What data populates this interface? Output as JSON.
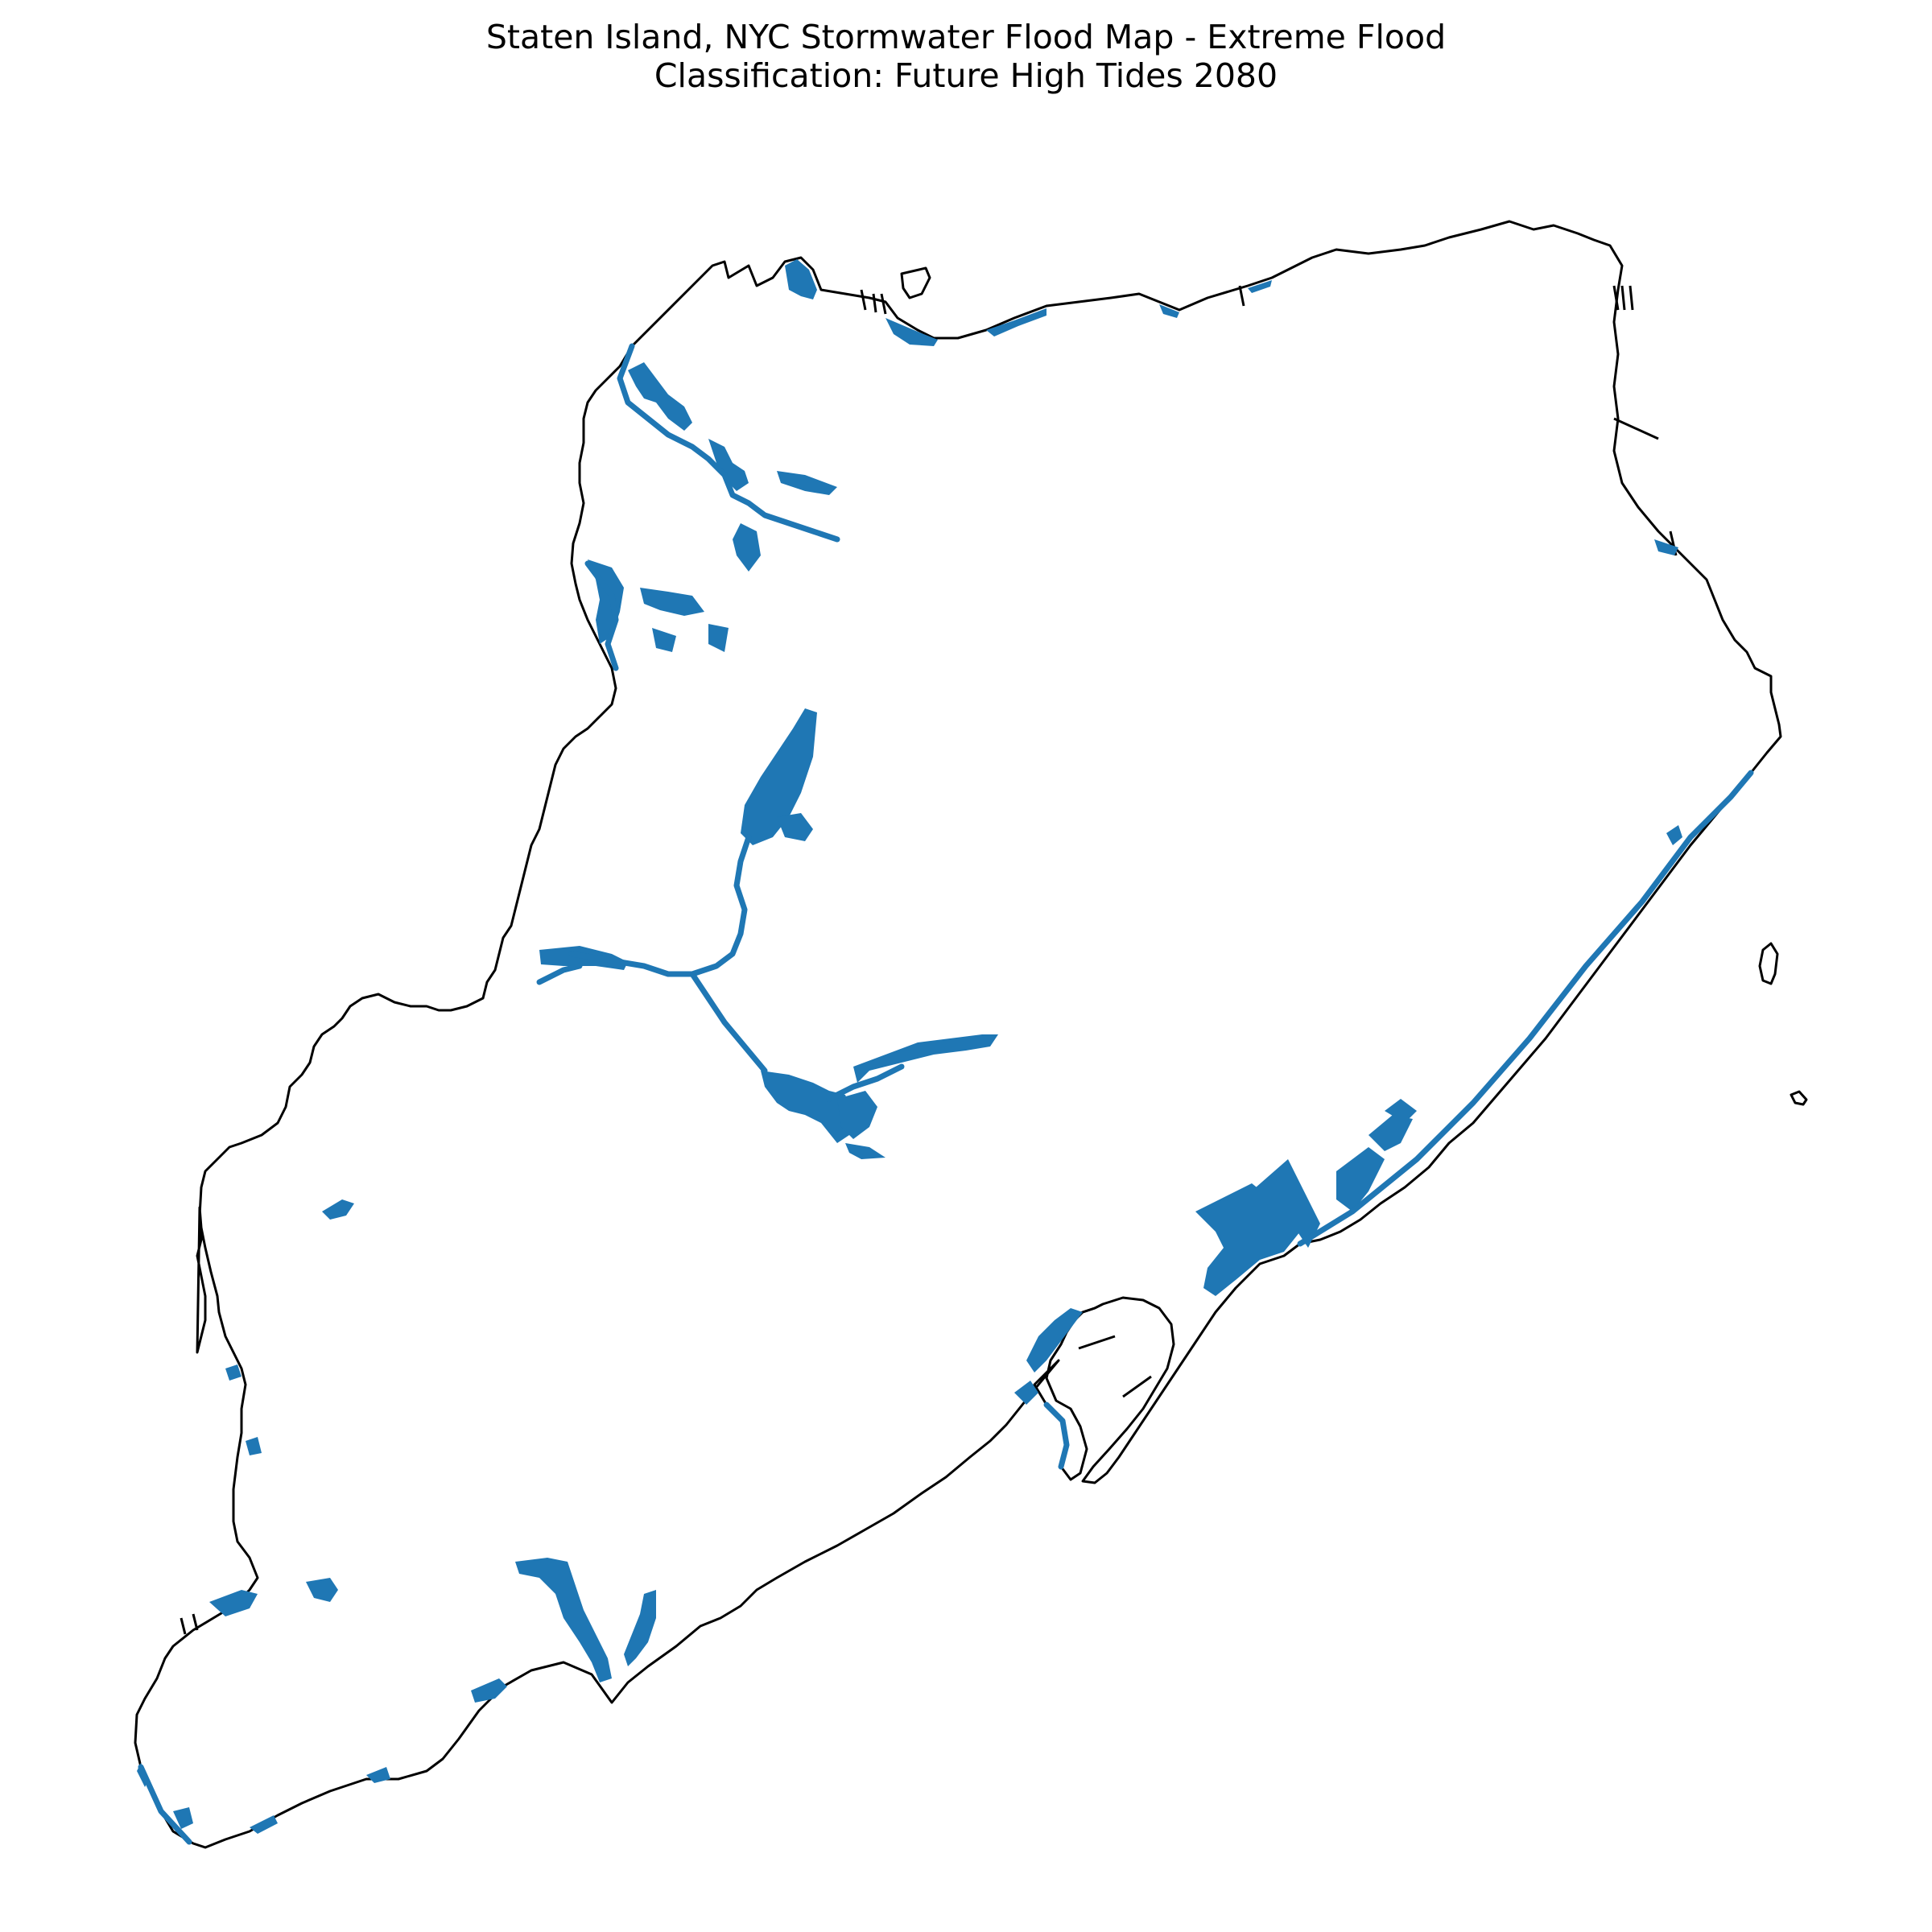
{
  "title": {
    "line1": "Staten Island, NYC Stormwater Flood Map - Extreme Flood",
    "line2": "Classification: Future High Tides 2080"
  },
  "colors": {
    "flood": "#1f77b4",
    "outline": "#000000",
    "background": "#ffffff"
  }
}
